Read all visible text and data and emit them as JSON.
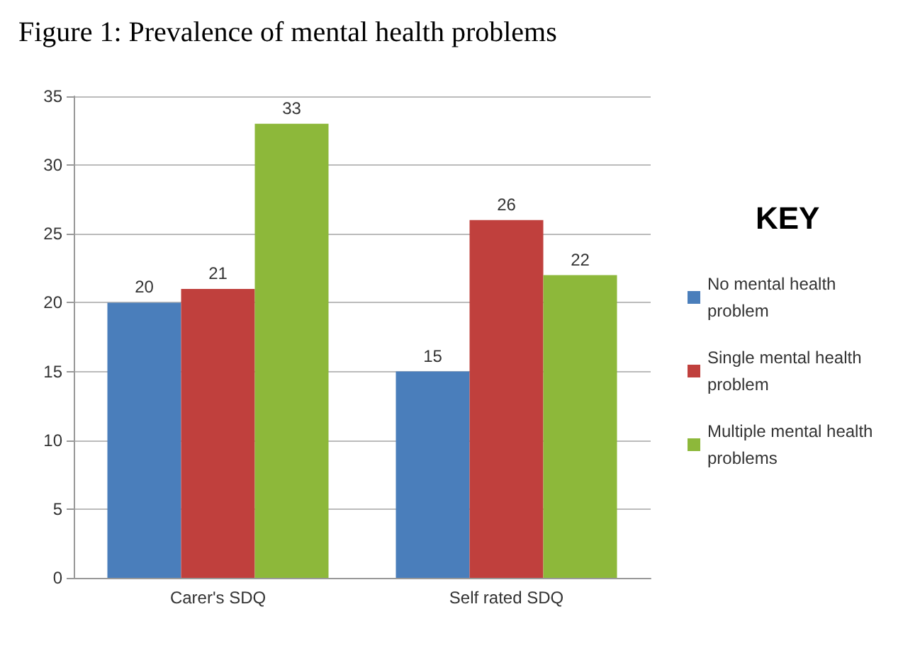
{
  "chart_data": {
    "type": "bar",
    "title": "Figure 1: Prevalence of mental health problems",
    "legend_title": "KEY",
    "categories": [
      "Carer's SDQ",
      "Self rated SDQ"
    ],
    "series": [
      {
        "name": "No mental health problem",
        "color": "#4a7ebb",
        "values": [
          20,
          15
        ]
      },
      {
        "name": "Single mental health problem",
        "color": "#c0403d",
        "values": [
          21,
          26
        ]
      },
      {
        "name": "Multiple mental health problems",
        "color": "#8db83a",
        "values": [
          33,
          22
        ]
      }
    ],
    "ylim": [
      0,
      35
    ],
    "yticks": [
      0,
      5,
      10,
      15,
      20,
      25,
      30,
      35
    ],
    "grid": "y",
    "legend": "right",
    "data_labels": true
  }
}
